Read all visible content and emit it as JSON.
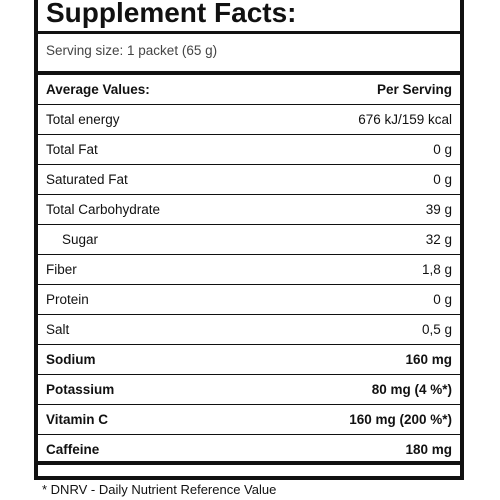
{
  "label": {
    "title": "Supplement Facts:",
    "serving_size": "Serving size: 1 packet (65 g)",
    "header": {
      "label": "Average Values:",
      "value": "Per Serving"
    },
    "rows": [
      {
        "label": "Total energy",
        "value": "676 kJ/159 kcal"
      },
      {
        "label": "Total Fat",
        "value": "0 g"
      },
      {
        "label": "Saturated Fat",
        "value": "0 g"
      },
      {
        "label": "Total Carbohydrate",
        "value": "39 g"
      },
      {
        "label": "Sugar",
        "value": "32 g"
      },
      {
        "label": "Fiber",
        "value": "1,8 g"
      },
      {
        "label": "Protein",
        "value": "0 g"
      },
      {
        "label": "Salt",
        "value": "0,5 g"
      },
      {
        "label": "Sodium",
        "value": "160 mg"
      },
      {
        "label": "Potassium",
        "value": "80 mg (4 %*)"
      },
      {
        "label": "Vitamin C",
        "value": "160 mg (200 %*)"
      },
      {
        "label": "Caffeine",
        "value": "180 mg"
      }
    ],
    "footnote": "* DNRV - Daily Nutrient Reference Value"
  }
}
